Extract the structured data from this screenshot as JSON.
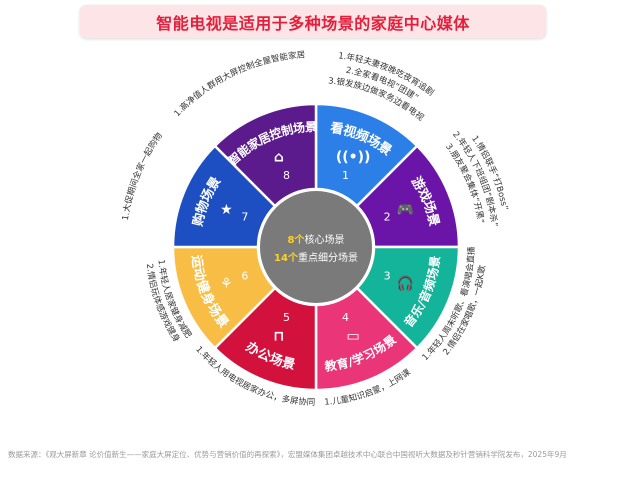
{
  "title": "智能电视是适用于多种场景的家庭中心媒体",
  "center": {
    "line1_num": "8个",
    "line1_text": "核心场景",
    "line2_num": "14个",
    "line2_text": "重点细分场景",
    "circle_color": "#7a7a7a",
    "highlight_color": "#ffd21f"
  },
  "segments": [
    {
      "num": "1",
      "label": "看视频场景",
      "icon": "broadcast-icon",
      "color": "#2d7fe8",
      "notes": [
        "1.年轻夫妻夜晚吃夜宵追剧",
        "2.全家看电视“团建”",
        "3.银发族边做家务边看电视"
      ]
    },
    {
      "num": "2",
      "label": "游戏场景",
      "icon": "gamepad-icon",
      "color": "#6b14a8",
      "notes": [
        "1.情侣联手“打Boss”",
        "2.年轻人下班组团“剧本杀”",
        "3.朋友聚会集体“开黑”"
      ]
    },
    {
      "num": "3",
      "label": "音乐/音频场景",
      "icon": "headphones-icon",
      "color": "#14b49b",
      "notes": [
        "1.年轻人周末听歌、看演唱会直播",
        "2.情侣在家唱歌，一起K歌"
      ]
    },
    {
      "num": "4",
      "label": "教育/学习场景",
      "icon": "monitor-icon",
      "color": "#ea3579",
      "notes": [
        "1.儿童知识启蒙，上网课"
      ]
    },
    {
      "num": "5",
      "label": "办公场景",
      "icon": "desk-icon",
      "color": "#d2113c",
      "notes": [
        "1.年轻人用电视居家办公，多屏协同"
      ]
    },
    {
      "num": "6",
      "label": "运动健身场景",
      "icon": "fitness-icon",
      "color": "#f7bd45",
      "notes": [
        "1.年轻人居家健身减肥",
        "2.情侣玩体感游戏健身"
      ]
    },
    {
      "num": "7",
      "label": "购物场景",
      "icon": "shopping-icon",
      "color": "#1d4fc2",
      "notes": [
        "1.大促期间全家一起购物"
      ]
    },
    {
      "num": "8",
      "label": "智能家居控制场景",
      "icon": "smart-home-icon",
      "color": "#5c1b8c",
      "notes": [
        "1.高净值人群用大屏控制全屋智能家居"
      ]
    }
  ],
  "source": "数据来源：《观大屏新章 论价值新生——家庭大屏定位、优势与营销价值的再探索》，宏盟媒体集团卓越技术中心联合中国视听大数据及秒针营销科学院发布，2025年9月"
}
